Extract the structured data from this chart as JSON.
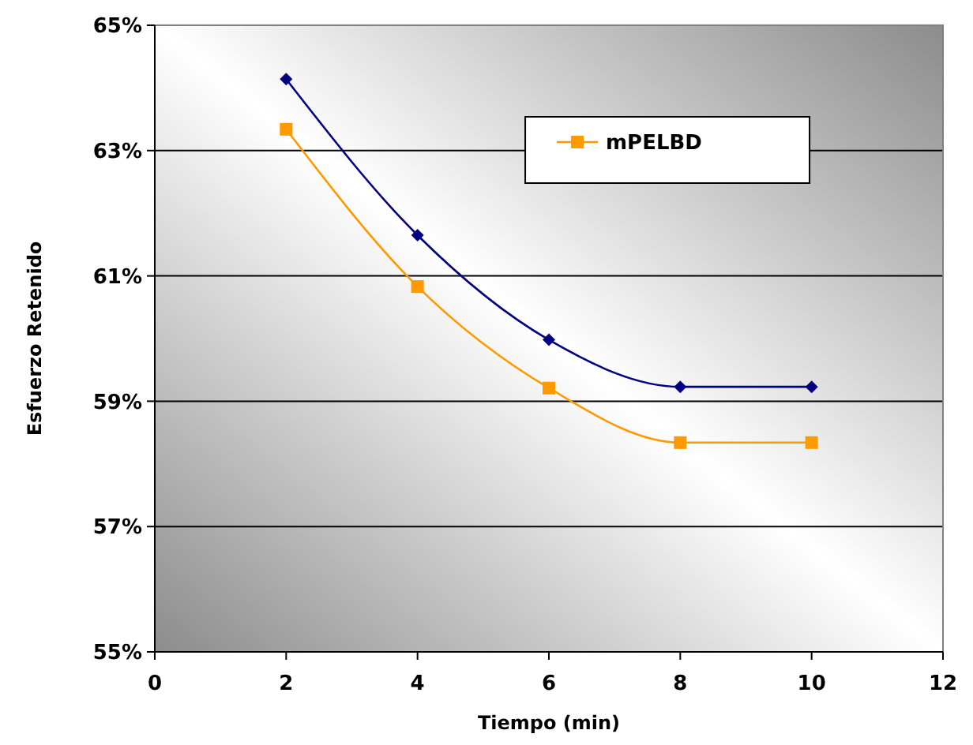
{
  "chart_data": {
    "type": "line",
    "xlabel": "Tiempo (min)",
    "ylabel": "Esfuerzo Retenido",
    "x": [
      2,
      4,
      6,
      8,
      10
    ],
    "series": [
      {
        "color": "#000080",
        "values": [
          64.14,
          61.65,
          59.98,
          59.23,
          59.23
        ],
        "marker": "diamond"
      },
      {
        "name": "mPELBD",
        "color": "#ff9900",
        "values": [
          63.34,
          60.83,
          59.21,
          58.34,
          58.34
        ],
        "marker": "square"
      }
    ],
    "xlim": [
      0,
      12
    ],
    "xticks": [
      0,
      2,
      4,
      6,
      8,
      10,
      12
    ],
    "ylim": [
      55,
      65
    ],
    "yticks": [
      {
        "value": 55,
        "label": "55%"
      },
      {
        "value": 57,
        "label": "57%"
      },
      {
        "value": 59,
        "label": "59%"
      },
      {
        "value": 61,
        "label": "61%"
      },
      {
        "value": 63,
        "label": "63%"
      },
      {
        "value": 65,
        "label": "65%"
      }
    ],
    "grid": "y",
    "legend": "top right",
    "line_style": "solid"
  }
}
